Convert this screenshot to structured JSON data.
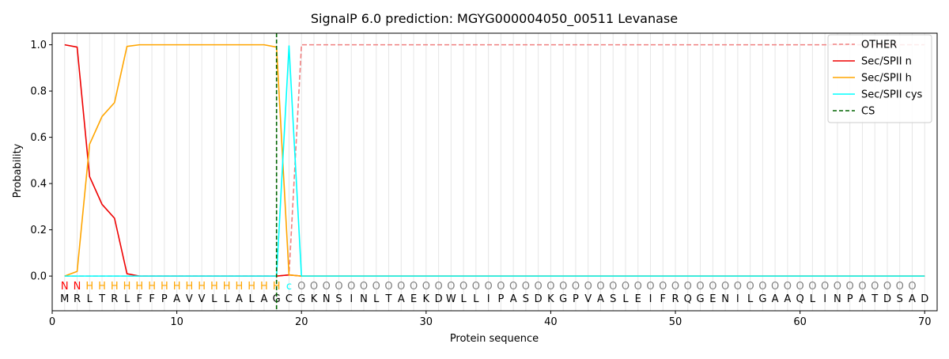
{
  "chart_data": {
    "type": "line",
    "title": "SignalP 6.0 prediction: MGYG000004050_00511 Levanase",
    "xlabel": "Protein sequence",
    "ylabel": "Probability",
    "xlim": [
      0,
      71
    ],
    "ylim": [
      -0.15,
      1.05
    ],
    "xticks": [
      0,
      10,
      20,
      30,
      40,
      50,
      60,
      70
    ],
    "yticks": [
      0.0,
      0.2,
      0.4,
      0.6,
      0.8,
      1.0
    ],
    "grid": "vertical lines at each residue",
    "legend_position": "top-right",
    "sequence": "MRLTRLFFPAVVLLALAGCGKNSINLTAEKDWLLIPASDKGPVASLEIFRQGENILGAAQLINPATDSAD",
    "region_labels": "NNHHHHHHHHHHHHHHHHcOOOOOOOOOOOOOOOOOOOOOOOOOOOOOOOOOOOOOOOOOOOOOOOOOO",
    "region_colors": {
      "N": "#ff0000",
      "H": "#ffa500",
      "c": "#00ffff",
      "O": "#808080"
    },
    "series": [
      {
        "name": "OTHER",
        "color": "#f08080",
        "dash": "dashed",
        "x": [
          1,
          18,
          19,
          20,
          70
        ],
        "y": [
          0.0,
          0.0,
          0.005,
          1.0,
          1.0
        ]
      },
      {
        "name": "Sec/SPII n",
        "color": "#ee0000",
        "dash": "solid",
        "x": [
          1,
          2,
          3,
          4,
          5,
          6,
          7,
          8,
          17,
          18,
          19,
          20,
          70
        ],
        "y": [
          1.0,
          0.99,
          0.43,
          0.31,
          0.25,
          0.01,
          0.0,
          0.0,
          0.0,
          0.0,
          0.005,
          0.0,
          0.0
        ]
      },
      {
        "name": "Sec/SPII h",
        "color": "#ffa500",
        "dash": "solid",
        "x": [
          1,
          2,
          3,
          4,
          5,
          6,
          7,
          8,
          16,
          17,
          18,
          19,
          20,
          70
        ],
        "y": [
          0.0,
          0.02,
          0.57,
          0.69,
          0.75,
          0.993,
          1.0,
          1.0,
          1.0,
          1.0,
          0.99,
          0.005,
          0.0,
          0.0
        ]
      },
      {
        "name": "Sec/SPII cys",
        "color": "#00ffff",
        "dash": "solid",
        "x": [
          1,
          17,
          18,
          19,
          20,
          21,
          70
        ],
        "y": [
          0.0,
          0.0,
          0.0,
          0.995,
          0.0,
          0.0,
          0.0
        ]
      }
    ],
    "cs_marker": {
      "name": "CS",
      "x": 18,
      "color": "#006400",
      "dash": "dashed"
    }
  }
}
